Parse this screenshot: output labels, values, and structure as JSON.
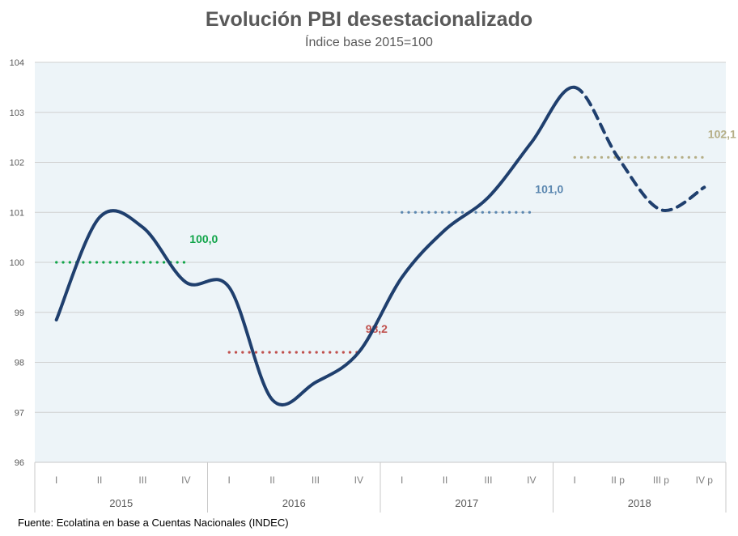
{
  "chart_data": {
    "type": "line",
    "title": "Evolución PBI desestacionalizado",
    "subtitle": "Índice base 2015=100",
    "xlabel": "",
    "ylabel": "",
    "ylim": [
      96,
      104
    ],
    "yticks": [
      96,
      97,
      98,
      99,
      100,
      101,
      102,
      103,
      104
    ],
    "grid": true,
    "legend": "none",
    "groups": [
      {
        "year": "2015",
        "quarters": [
          "I",
          "II",
          "III",
          "IV"
        ]
      },
      {
        "year": "2016",
        "quarters": [
          "I",
          "II",
          "III",
          "IV"
        ]
      },
      {
        "year": "2017",
        "quarters": [
          "I",
          "II",
          "III",
          "IV"
        ]
      },
      {
        "year": "2018",
        "quarters": [
          "I",
          "II p",
          "III p",
          "IV p"
        ]
      }
    ],
    "series": [
      {
        "name": "PBI desestacionalizado",
        "color": "#1f3f6e",
        "values": [
          98.85,
          100.9,
          100.7,
          99.6,
          99.5,
          97.25,
          97.6,
          98.2,
          99.7,
          100.65,
          101.3,
          102.4,
          103.5,
          102.1,
          101.05,
          101.5
        ],
        "projected_from_index": 12
      }
    ],
    "annual_averages": [
      {
        "year": "2015",
        "value": 100.0,
        "label": "100,0",
        "color": "#12a54a"
      },
      {
        "year": "2016",
        "value": 98.2,
        "label": "98,2",
        "color": "#c0504d"
      },
      {
        "year": "2017",
        "value": 101.0,
        "label": "101,0",
        "color": "#5b87b0"
      },
      {
        "year": "2018",
        "value": 102.1,
        "label": "102,1",
        "color": "#b5ae86"
      }
    ]
  },
  "source": "Fuente: Ecolatina en base a Cuentas Nacionales (INDEC)",
  "colors": {
    "plot_background": "#edf4f8",
    "gridline": "#d0d0d0",
    "line": "#1f3f6e"
  }
}
